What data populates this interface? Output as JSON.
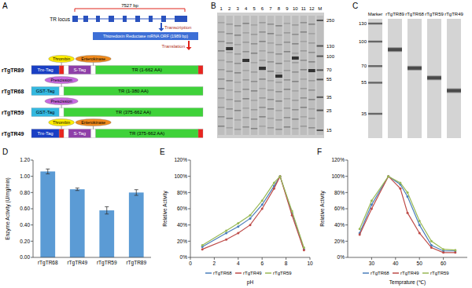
{
  "panel_labels": [
    "A",
    "B",
    "C",
    "D",
    "E",
    "F"
  ],
  "diagram": {
    "locus_label": "TR locus",
    "locus_size": "7527 bp",
    "transcription": "Transcription",
    "mrna": "Thioredoxin Reductase mRNA ORF (1989 bp)",
    "translation": "Translation",
    "constructs": [
      {
        "name": "rTgTR89",
        "parts": [
          {
            "label": "Trx-Tag",
            "color": "#1a3fc4"
          },
          {
            "color": "#e8251f",
            "site": {
              "label": "Thrombin",
              "color": "#ffee00"
            }
          },
          {
            "color": "#ffffff"
          },
          {
            "label": "S-Tag",
            "color": "#8e3fa8"
          },
          {
            "color": "#ffffff",
            "site": {
              "label": "Enterokinase",
              "color": "#f08a1c"
            }
          },
          {
            "label": "TR (1-662 AA)",
            "color": "#3fd23a"
          },
          {
            "color": "#e8251f"
          }
        ]
      },
      {
        "name": "rTgTR68",
        "parts": [
          {
            "label": "GST-Tag",
            "color": "#34b8e0"
          },
          {
            "color": "#ffffff",
            "site": {
              "label": "Prescission",
              "color": "#c86adf"
            }
          },
          {
            "label": "TR (1-380 AA)",
            "color": "#3fd23a"
          }
        ]
      },
      {
        "name": "rTgTR59",
        "parts": [
          {
            "label": "GST-Tag",
            "color": "#34b8e0"
          },
          {
            "color": "#ffffff",
            "site": {
              "label": "Prescission",
              "color": "#c86adf"
            }
          },
          {
            "label": "TR (375-662 AA)",
            "color": "#3fd23a"
          }
        ]
      },
      {
        "name": "rTgTR49",
        "parts": [
          {
            "label": "Trx-Tag",
            "color": "#1a3fc4"
          },
          {
            "color": "#e8251f",
            "site": {
              "label": "Thrombin",
              "color": "#ffee00"
            }
          },
          {
            "color": "#ffffff"
          },
          {
            "label": "S-Tag",
            "color": "#8e3fa8"
          },
          {
            "color": "#ffffff",
            "site": {
              "label": "Enterokinase",
              "color": "#f08a1c"
            }
          },
          {
            "label": "TR (375-662 AA)",
            "color": "#3fd23a"
          },
          {
            "color": "#e8251f"
          }
        ]
      }
    ]
  },
  "gels": {
    "b": {
      "lanes": [
        "1",
        "2",
        "3",
        "4",
        "5",
        "6",
        "7",
        "8",
        "9",
        "10",
        "11",
        "12",
        "M"
      ],
      "markers": [
        250,
        130,
        100,
        70,
        55,
        35,
        25,
        15
      ]
    },
    "c": {
      "lanes": [
        "Marker",
        "rTgTR89",
        "rTgTR68",
        "rTgTR59",
        "rTgTR49"
      ],
      "markers": [
        130,
        100,
        70,
        55,
        35
      ],
      "bands": [
        null,
        89,
        68,
        59,
        49
      ]
    }
  },
  "chart_data": [
    {
      "type": "bar",
      "y_label": "Enzyme Activity (U/mg/min)",
      "categories": [
        "rTgTR68",
        "rTgTR49",
        "rTgTR59",
        "rTgTR89"
      ],
      "values": [
        1.06,
        0.84,
        0.58,
        0.8
      ],
      "errors": [
        0.03,
        0.015,
        0.045,
        0.035
      ],
      "color": "#5b9bd5",
      "ylim": [
        0,
        1.2
      ],
      "yticks": [
        {
          "value": 0,
          "label": "0.00"
        },
        {
          "value": 0.2,
          "label": "0.20"
        },
        {
          "value": 0.4,
          "label": "0.40"
        },
        {
          "value": 0.6,
          "label": "0.60"
        },
        {
          "value": 0.8,
          "label": "0.80"
        },
        {
          "value": 1.0,
          "label": "1.00"
        },
        {
          "value": 1.2,
          "label": "1.20"
        }
      ],
      "grid": false
    },
    {
      "type": "line",
      "x_label": "pH",
      "y_label": "Relative Activity",
      "x": [
        1,
        3,
        4,
        5,
        6,
        7,
        7.5,
        8.5,
        9.5
      ],
      "series": [
        {
          "name": "rTgTR68",
          "color": "#4a7ebb",
          "marker": "circle",
          "values": [
            13,
            30,
            38,
            48,
            65,
            88,
            100,
            55,
            10
          ]
        },
        {
          "name": "rTgTR49",
          "color": "#be4b48",
          "marker": "circle",
          "values": [
            10,
            22,
            30,
            40,
            60,
            85,
            100,
            52,
            9
          ]
        },
        {
          "name": "rTgTR59",
          "color": "#98b954",
          "marker": "circle",
          "values": [
            15,
            33,
            42,
            52,
            70,
            92,
            100,
            57,
            12
          ]
        }
      ],
      "xlim": [
        0,
        10
      ],
      "xticks": [
        0,
        2,
        4,
        6,
        8,
        10
      ],
      "ylim": [
        0,
        120
      ],
      "yticks": [
        {
          "value": 0,
          "label": "0%"
        },
        {
          "value": 20,
          "label": "20%"
        },
        {
          "value": 40,
          "label": "40%"
        },
        {
          "value": 60,
          "label": "60%"
        },
        {
          "value": 80,
          "label": "80%"
        },
        {
          "value": 100,
          "label": "100%"
        },
        {
          "value": 120,
          "label": "120%"
        }
      ],
      "grid": false,
      "legend": "bottom"
    },
    {
      "type": "line",
      "x_label": "Temprature (℃)",
      "y_label": "Relative Activity",
      "x": [
        25,
        30,
        37,
        42,
        45,
        50,
        55,
        60,
        65
      ],
      "series": [
        {
          "name": "rTgTR68",
          "color": "#4a7ebb",
          "marker": "circle",
          "values": [
            30,
            65,
            100,
            90,
            75,
            40,
            15,
            8,
            8
          ]
        },
        {
          "name": "rTgTR49",
          "color": "#be4b48",
          "marker": "circle",
          "values": [
            28,
            60,
            100,
            85,
            55,
            30,
            12,
            6,
            6
          ]
        },
        {
          "name": "rTgTR59",
          "color": "#98b954",
          "marker": "circle",
          "values": [
            35,
            70,
            100,
            92,
            80,
            45,
            20,
            10,
            9
          ]
        }
      ],
      "xlim": [
        20,
        70
      ],
      "xticks": [
        30,
        40,
        50,
        60
      ],
      "ylim": [
        0,
        120
      ],
      "yticks": [
        {
          "value": 0,
          "label": "0%"
        },
        {
          "value": 20,
          "label": "20%"
        },
        {
          "value": 40,
          "label": "40%"
        },
        {
          "value": 60,
          "label": "60%"
        },
        {
          "value": 80,
          "label": "80%"
        },
        {
          "value": 100,
          "label": "100%"
        },
        {
          "value": 120,
          "label": "120%"
        }
      ],
      "grid": false,
      "legend": "bottom"
    }
  ]
}
